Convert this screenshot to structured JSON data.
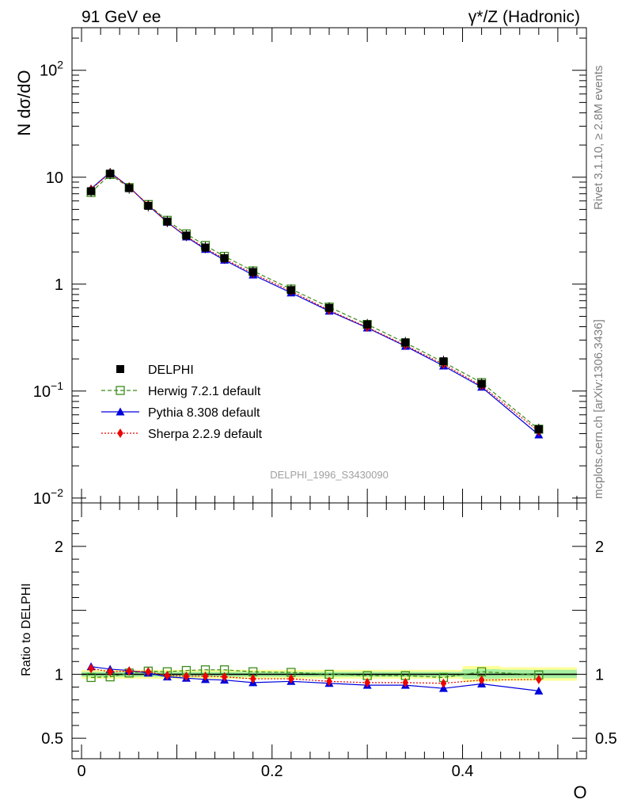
{
  "header": {
    "left": "91 GeV ee",
    "right": "γ*/Z (Hadronic)"
  },
  "side_labels": {
    "rivet": "Rivet 3.1.10, ≥ 2.8M events",
    "mcplots": "mcplots.cern.ch [arXiv:1306.3436]"
  },
  "watermark": "DELPHI_1996_S3430090",
  "chart_data": [
    {
      "type": "line",
      "ylabel": "N dσ/dO",
      "yscale": "log",
      "ylim": [
        0.009,
        250
      ],
      "xlim": [
        -0.01,
        0.53
      ],
      "y_ticks": [
        {
          "v": 100,
          "label": "10^2"
        },
        {
          "v": 10,
          "label": "10"
        },
        {
          "v": 1,
          "label": "1"
        },
        {
          "v": 0.1,
          "label": "10^-1"
        },
        {
          "v": 0.01,
          "label": "10^-2"
        }
      ],
      "x": [
        0.01,
        0.03,
        0.05,
        0.07,
        0.09,
        0.11,
        0.13,
        0.15,
        0.18,
        0.22,
        0.26,
        0.3,
        0.34,
        0.38,
        0.42,
        0.48
      ],
      "series": [
        {
          "name": "DELPHI",
          "style": "data",
          "color": "#000000",
          "values": [
            7.4,
            10.8,
            7.9,
            5.4,
            3.85,
            2.85,
            2.2,
            1.75,
            1.3,
            0.88,
            0.6,
            0.42,
            0.285,
            0.19,
            0.117,
            0.044
          ]
        },
        {
          "name": "Herwig 7.2.1 default",
          "style": "herwig",
          "color": "#3a8b19",
          "values": [
            7.2,
            10.6,
            8.0,
            5.55,
            3.95,
            2.95,
            2.3,
            1.82,
            1.33,
            0.9,
            0.61,
            0.42,
            0.283,
            0.186,
            0.12,
            0.044
          ]
        },
        {
          "name": "Pythia 8.308 default",
          "style": "pythia",
          "color": "#0000dd",
          "values": [
            7.8,
            11.1,
            8.1,
            5.45,
            3.8,
            2.77,
            2.12,
            1.68,
            1.22,
            0.83,
            0.56,
            0.39,
            0.263,
            0.172,
            0.109,
            0.039
          ]
        },
        {
          "name": "Sherpa 2.2.9 default",
          "style": "sherpa",
          "color": "#ee0000",
          "values": [
            7.7,
            11.0,
            8.1,
            5.5,
            3.8,
            2.8,
            2.17,
            1.72,
            1.26,
            0.86,
            0.57,
            0.395,
            0.268,
            0.178,
            0.112,
            0.042
          ]
        }
      ],
      "legend": "middle-left"
    },
    {
      "type": "line",
      "ylabel": "Ratio to DELPHI",
      "ylim": [
        0.34,
        2.34
      ],
      "xlim": [
        -0.01,
        0.53
      ],
      "xlabel": "O",
      "y_ticks": [
        {
          "v": 2,
          "label": "2"
        },
        {
          "v": 1,
          "label": "1"
        },
        {
          "v": 0.5,
          "label": "0.5"
        }
      ],
      "x_ticks": [
        {
          "v": 0,
          "label": "0"
        },
        {
          "v": 0.2,
          "label": "0.2"
        },
        {
          "v": 0.4,
          "label": "0.4"
        }
      ],
      "bands": [
        {
          "from": 0.0,
          "to": 0.4,
          "lo_yellow": 0.965,
          "hi_yellow": 1.035,
          "lo_green": 0.98,
          "hi_green": 1.02
        },
        {
          "from": 0.4,
          "to": 0.44,
          "lo_yellow": 0.94,
          "hi_yellow": 1.065,
          "lo_green": 0.965,
          "hi_green": 1.04
        },
        {
          "from": 0.44,
          "to": 0.52,
          "lo_yellow": 0.95,
          "hi_yellow": 1.055,
          "lo_green": 0.97,
          "hi_green": 1.035
        }
      ],
      "x": [
        0.01,
        0.03,
        0.05,
        0.07,
        0.09,
        0.11,
        0.13,
        0.15,
        0.18,
        0.22,
        0.26,
        0.3,
        0.34,
        0.38,
        0.42,
        0.48
      ],
      "series": [
        {
          "name": "Herwig 7.2.1 default",
          "style": "herwig",
          "color": "#3a8b19",
          "values": [
            0.975,
            0.98,
            1.01,
            1.025,
            1.02,
            1.03,
            1.035,
            1.035,
            1.02,
            1.015,
            1.0,
            0.99,
            0.99,
            0.975,
            1.02,
            0.995
          ]
        },
        {
          "name": "Pythia 8.308 default",
          "style": "pythia",
          "color": "#0000dd",
          "values": [
            1.06,
            1.04,
            1.03,
            1.01,
            0.98,
            0.97,
            0.96,
            0.955,
            0.935,
            0.945,
            0.93,
            0.915,
            0.915,
            0.89,
            0.925,
            0.87
          ]
        },
        {
          "name": "Sherpa 2.2.9 default",
          "style": "sherpa",
          "color": "#ee0000",
          "values": [
            1.045,
            1.02,
            1.025,
            1.02,
            0.99,
            0.985,
            0.985,
            0.98,
            0.965,
            0.965,
            0.945,
            0.935,
            0.935,
            0.93,
            0.955,
            0.96
          ]
        }
      ]
    }
  ]
}
